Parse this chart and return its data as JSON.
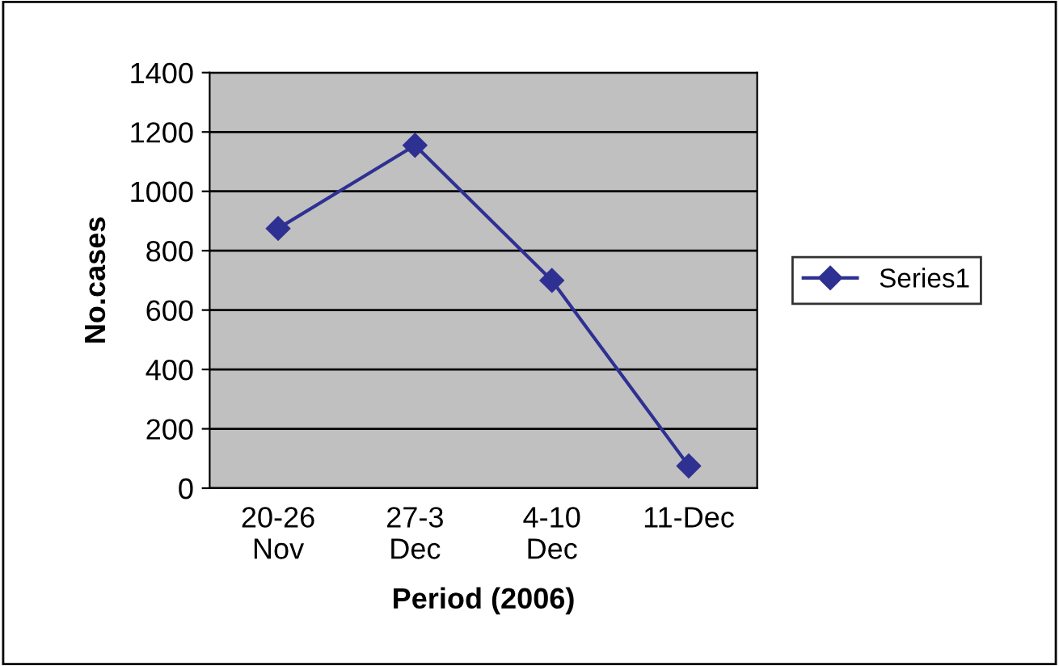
{
  "chart_data": {
    "type": "line",
    "xlabel": "Period (2006)",
    "ylabel": "No.cases",
    "categories": [
      "20-26\nNov",
      "27-3\nDec",
      "4-10\nDec",
      "11-Dec"
    ],
    "series": [
      {
        "name": "Series1",
        "color": "#2e3192",
        "values": [
          875,
          1155,
          700,
          75
        ]
      }
    ],
    "ylim": [
      0,
      1400
    ],
    "yticks": [
      0,
      200,
      400,
      600,
      800,
      1000,
      1200,
      1400
    ],
    "grid": "y",
    "legend": "right",
    "marker": "diamond",
    "line_style": "solid"
  }
}
